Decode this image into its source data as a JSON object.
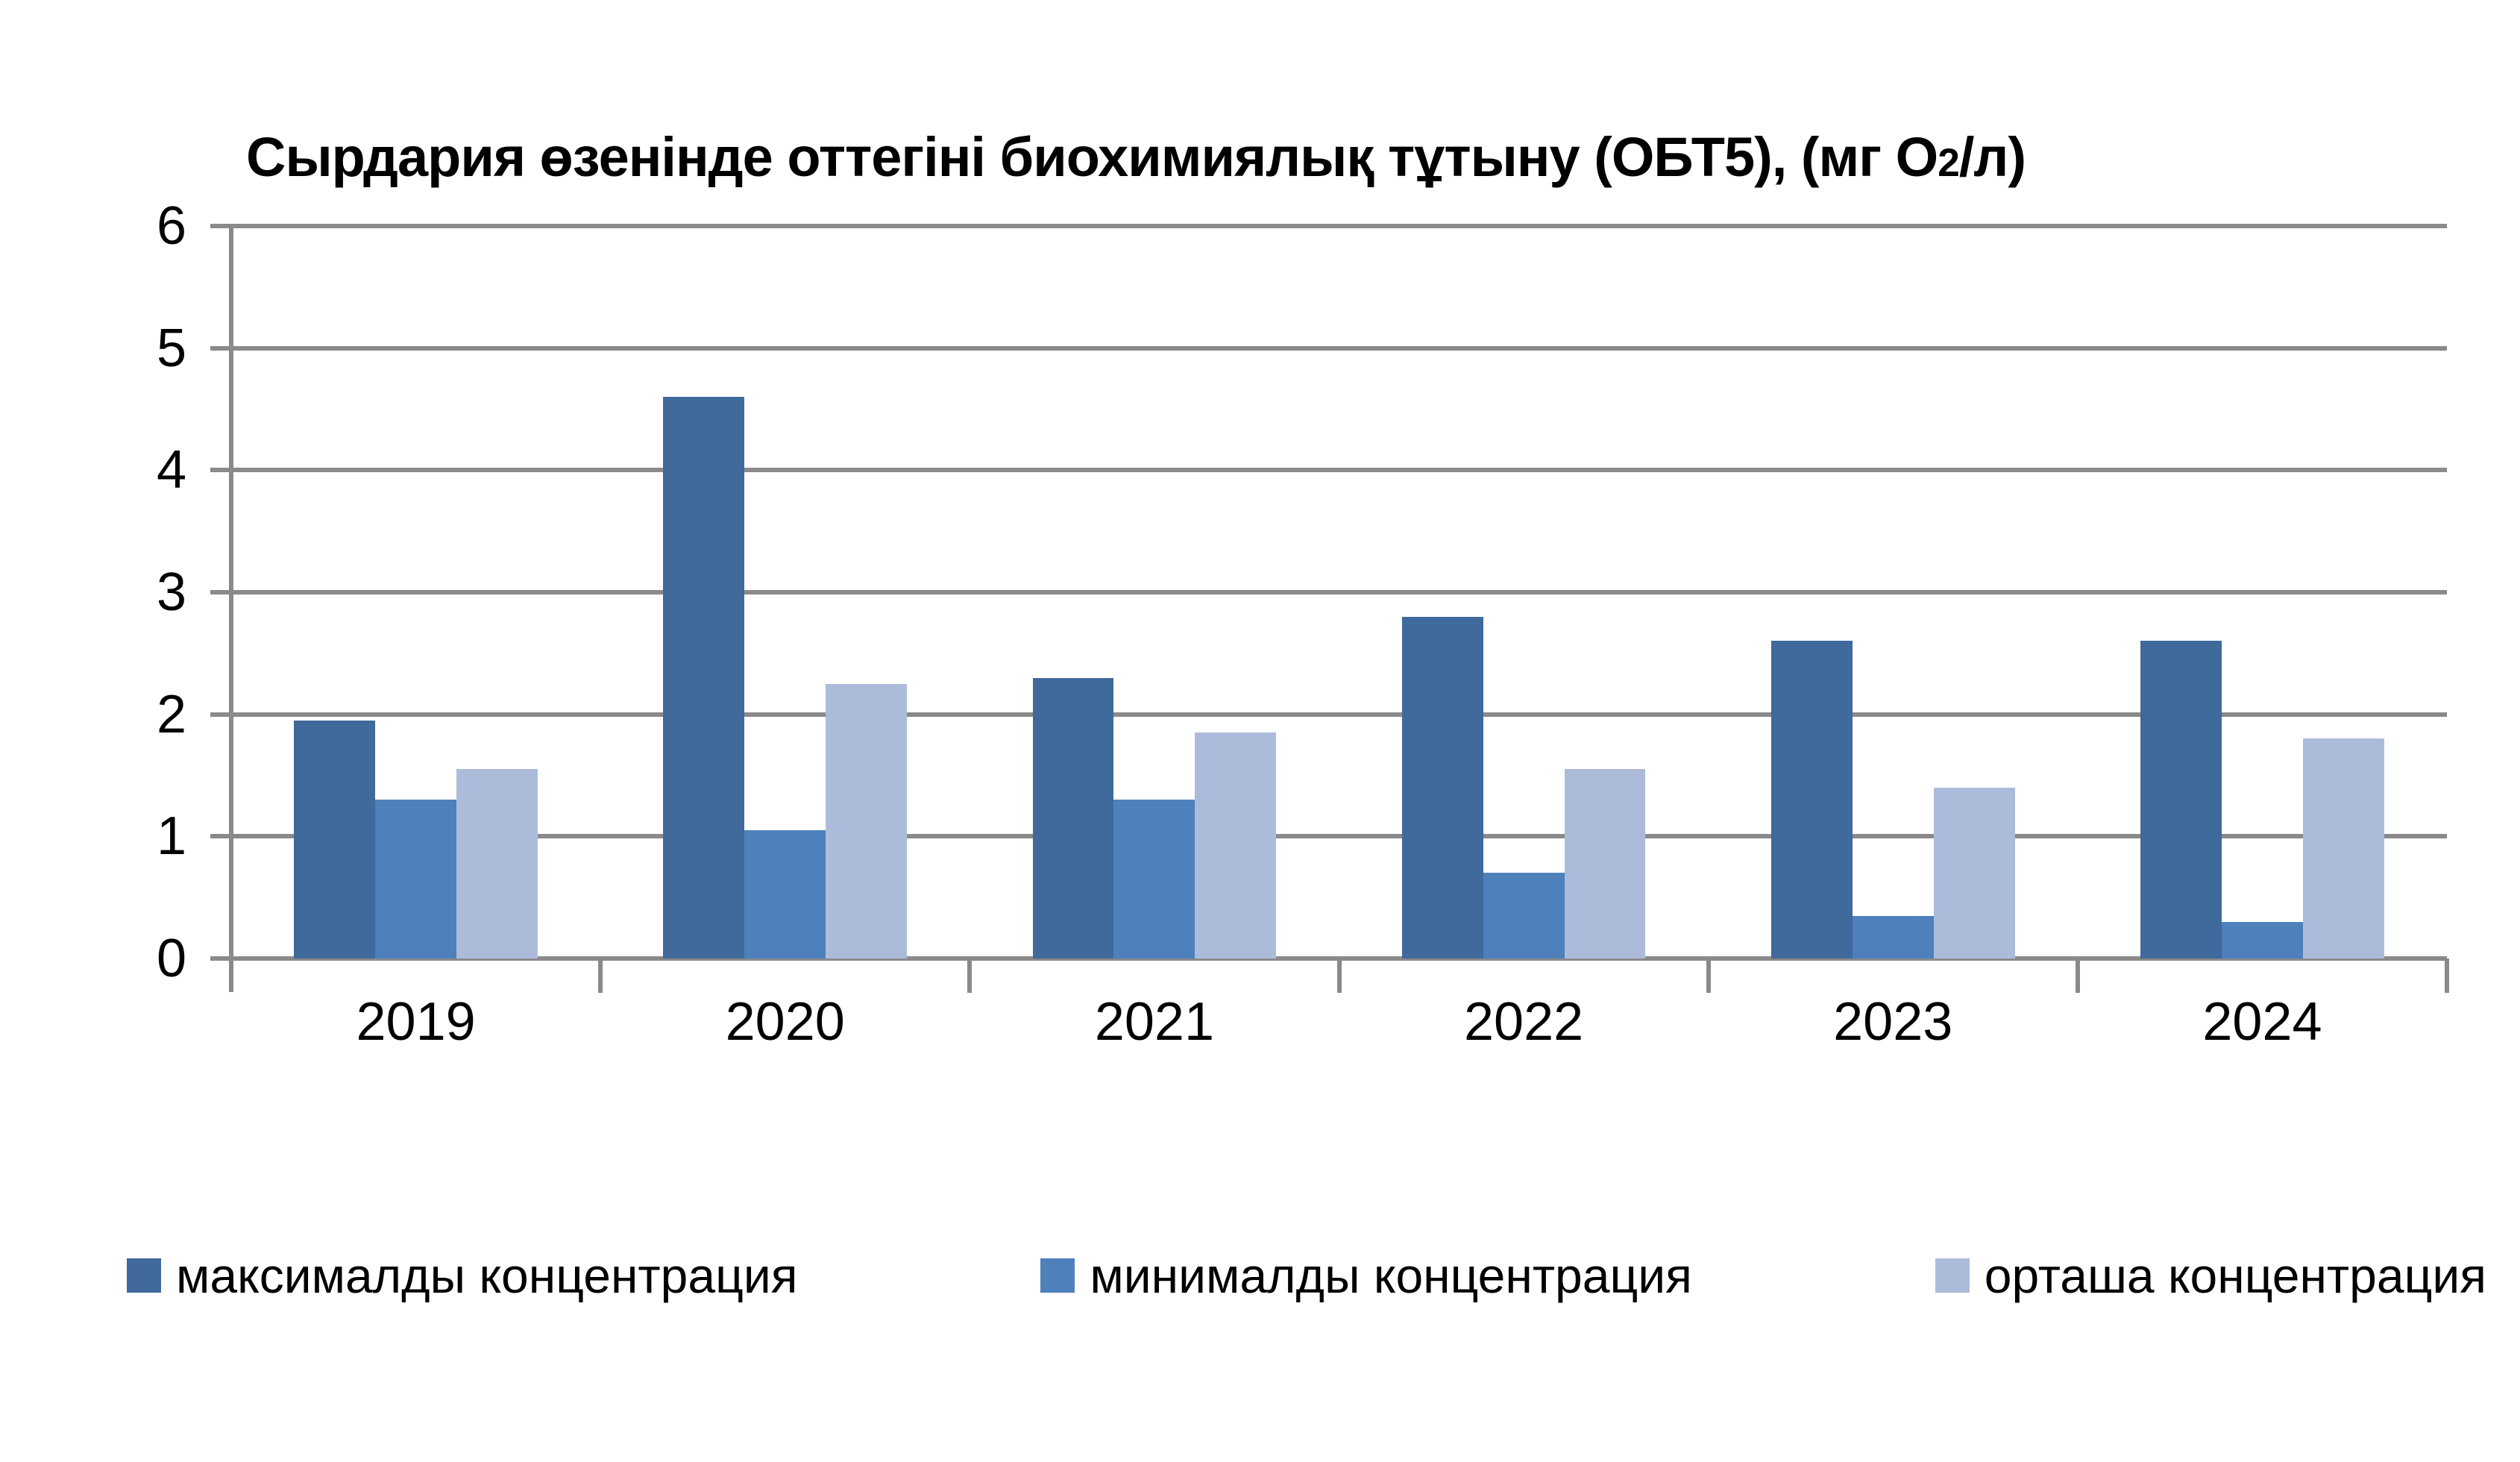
{
  "title": {
    "main": "Сырдария өзенінде оттегіні биохимиялық тұтыну (ОБТ5), (мг О",
    "sub": "2",
    "end": "/л)"
  },
  "chart_data": {
    "type": "bar",
    "title": "Сырдария өзенінде оттегіні биохимиялық тұтыну (ОБТ5), (мг О2/л)",
    "categories": [
      "2019",
      "2020",
      "2021",
      "2022",
      "2023",
      "2024"
    ],
    "series": [
      {
        "name": "максималды концентрация",
        "color": "#40699C",
        "values": [
          1.95,
          4.6,
          2.3,
          2.8,
          2.6,
          2.6
        ]
      },
      {
        "name": "минималды концентрация",
        "color": "#4E80BC",
        "values": [
          1.3,
          1.05,
          1.3,
          0.7,
          0.35,
          0.3
        ]
      },
      {
        "name": "орташа концентрация",
        "color": "#ADBBDA",
        "values": [
          1.55,
          2.25,
          1.85,
          1.55,
          1.4,
          1.8
        ]
      }
    ],
    "xlabel": "",
    "ylabel": "",
    "ylim": [
      0,
      6
    ],
    "yticks": [
      0,
      1,
      2,
      3,
      4,
      5,
      6
    ],
    "grid": "horizontal",
    "gridline_color": "#8A8A8A",
    "legend_position": "bottom",
    "background_color": "#FFFFFF",
    "text_color": "#000000"
  }
}
